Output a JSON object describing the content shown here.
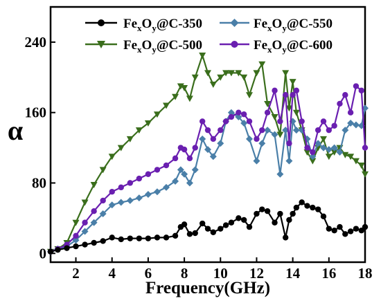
{
  "chart_data": {
    "type": "line",
    "xlabel": "Frequency(GHz)",
    "ylabel": "α",
    "xlim": [
      0.6,
      18
    ],
    "ylim": [
      -10,
      280
    ],
    "xticks": [
      2,
      4,
      6,
      8,
      10,
      12,
      14,
      16,
      18
    ],
    "yticks": [
      0,
      80,
      160,
      240
    ],
    "legend_position": "top",
    "series": [
      {
        "name": "FexOy@C-350",
        "legend": {
          "base": "Fe",
          "s1": "x",
          "mid": "O",
          "s2": "y",
          "suffix": "@C-350"
        },
        "color": "#000000",
        "marker": "circle",
        "x": [
          0.6,
          1.0,
          1.5,
          2.0,
          2.5,
          3.0,
          3.5,
          4.0,
          4.5,
          5.0,
          5.5,
          6.0,
          6.5,
          7.0,
          7.5,
          7.8,
          8.0,
          8.3,
          8.6,
          9.0,
          9.3,
          9.6,
          10.0,
          10.3,
          10.6,
          11.0,
          11.3,
          11.6,
          12.0,
          12.3,
          12.6,
          13.0,
          13.3,
          13.6,
          13.8,
          14.0,
          14.2,
          14.5,
          14.8,
          15.1,
          15.4,
          15.7,
          16.0,
          16.3,
          16.6,
          16.9,
          17.2,
          17.5,
          17.8,
          18.0
        ],
        "values": [
          2,
          4,
          6,
          8,
          10,
          12,
          14,
          18,
          16,
          17,
          17,
          17,
          18,
          18,
          20,
          30,
          33,
          22,
          23,
          34,
          28,
          24,
          28,
          32,
          35,
          40,
          38,
          30,
          45,
          50,
          48,
          35,
          45,
          18,
          38,
          45,
          52,
          58,
          54,
          52,
          50,
          42,
          28,
          26,
          30,
          22,
          25,
          28,
          26,
          30
        ]
      },
      {
        "name": "FexOy@C-500",
        "legend": {
          "base": "Fe",
          "s1": "x",
          "mid": "O",
          "s2": "y",
          "suffix": "@C-500"
        },
        "color": "#3a6e1c",
        "marker": "triangle-down",
        "x": [
          0.6,
          1.0,
          1.5,
          2.0,
          2.5,
          3.0,
          3.5,
          4.0,
          4.5,
          5.0,
          5.5,
          6.0,
          6.5,
          7.0,
          7.5,
          7.8,
          8.0,
          8.3,
          8.6,
          9.0,
          9.3,
          9.6,
          10.0,
          10.3,
          10.6,
          11.0,
          11.3,
          11.6,
          12.0,
          12.3,
          12.6,
          13.0,
          13.3,
          13.6,
          13.8,
          14.0,
          14.2,
          14.5,
          14.8,
          15.1,
          15.4,
          15.7,
          16.0,
          16.3,
          16.6,
          16.9,
          17.2,
          17.5,
          17.8,
          18.0
        ],
        "values": [
          2,
          5,
          12,
          35,
          58,
          78,
          95,
          110,
          120,
          130,
          140,
          148,
          158,
          168,
          178,
          190,
          188,
          176,
          200,
          225,
          205,
          192,
          200,
          205,
          205,
          205,
          200,
          180,
          205,
          215,
          170,
          155,
          135,
          205,
          165,
          195,
          160,
          140,
          115,
          105,
          120,
          130,
          110,
          115,
          120,
          112,
          110,
          105,
          100,
          90
        ]
      },
      {
        "name": "FexOy@C-550",
        "legend": {
          "base": "Fe",
          "s1": "x",
          "mid": "O",
          "s2": "y",
          "suffix": "@C-550"
        },
        "color": "#4a7fa8",
        "marker": "diamond",
        "x": [
          0.6,
          1.0,
          1.5,
          2.0,
          2.5,
          3.0,
          3.5,
          4.0,
          4.5,
          5.0,
          5.5,
          6.0,
          6.5,
          7.0,
          7.5,
          7.8,
          8.0,
          8.3,
          8.6,
          9.0,
          9.3,
          9.6,
          10.0,
          10.3,
          10.6,
          11.0,
          11.3,
          11.6,
          12.0,
          12.3,
          12.6,
          13.0,
          13.3,
          13.6,
          13.8,
          14.0,
          14.2,
          14.5,
          14.8,
          15.1,
          15.4,
          15.7,
          16.0,
          16.3,
          16.6,
          16.9,
          17.2,
          17.5,
          17.8,
          18.0
        ],
        "values": [
          2,
          5,
          8,
          15,
          25,
          35,
          45,
          55,
          58,
          60,
          63,
          67,
          70,
          75,
          82,
          95,
          90,
          80,
          95,
          130,
          118,
          110,
          125,
          150,
          160,
          155,
          148,
          130,
          105,
          125,
          140,
          135,
          90,
          140,
          105,
          150,
          140,
          140,
          130,
          110,
          125,
          120,
          118,
          120,
          115,
          140,
          148,
          146,
          145,
          165
        ]
      },
      {
        "name": "FexOy@C-600",
        "legend": {
          "base": "Fe",
          "s1": "x",
          "mid": "O",
          "s2": "y",
          "suffix": "@C-600"
        },
        "color": "#6a1fb0",
        "marker": "circle",
        "x": [
          0.6,
          1.0,
          1.5,
          2.0,
          2.5,
          3.0,
          3.5,
          4.0,
          4.5,
          5.0,
          5.5,
          6.0,
          6.5,
          7.0,
          7.5,
          7.8,
          8.0,
          8.3,
          8.6,
          9.0,
          9.3,
          9.6,
          10.0,
          10.3,
          10.6,
          11.0,
          11.3,
          11.6,
          12.0,
          12.3,
          12.6,
          13.0,
          13.3,
          13.6,
          13.8,
          14.0,
          14.2,
          14.5,
          14.8,
          15.1,
          15.4,
          15.7,
          16.0,
          16.3,
          16.6,
          16.9,
          17.2,
          17.5,
          17.8,
          18.0
        ],
        "values": [
          2,
          5,
          10,
          20,
          35,
          48,
          60,
          70,
          75,
          80,
          85,
          90,
          95,
          100,
          108,
          120,
          118,
          108,
          120,
          150,
          140,
          130,
          140,
          150,
          155,
          160,
          158,
          150,
          130,
          140,
          160,
          185,
          150,
          180,
          125,
          180,
          185,
          150,
          120,
          115,
          140,
          150,
          140,
          145,
          170,
          180,
          160,
          190,
          185,
          120
        ]
      }
    ]
  }
}
